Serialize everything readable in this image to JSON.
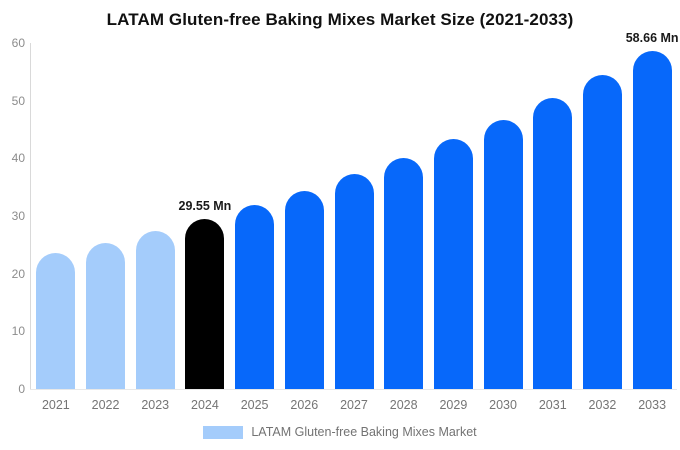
{
  "title": "LATAM Gluten-free Baking Mixes Market Size (2021-2033)",
  "legend": {
    "label": "LATAM Gluten-free Baking Mixes Market",
    "swatch_color": "#a4ccfb"
  },
  "colors": {
    "historical_bar": "#a4ccfb",
    "base_year_bar": "#000000",
    "forecast_bar": "#0768fa",
    "axis_line": "#d9d9d9",
    "baseline": "#e8e8e8",
    "y_tick_text": "#8c8c8c",
    "x_tick_text": "#757575",
    "value_label_text": "#1a1a1a"
  },
  "chart_data": {
    "type": "bar",
    "title": "LATAM Gluten-free Baking Mixes Market Size (2021-2033)",
    "categories": [
      "2021",
      "2022",
      "2023",
      "2024",
      "2025",
      "2026",
      "2027",
      "2028",
      "2029",
      "2030",
      "2031",
      "2032",
      "2033"
    ],
    "values": [
      23.5,
      25.4,
      27.4,
      29.55,
      31.9,
      34.4,
      37.2,
      40.1,
      43.3,
      46.7,
      50.4,
      54.4,
      58.66
    ],
    "unit": "Mn",
    "point_colors": [
      "#a4ccfb",
      "#a4ccfb",
      "#a4ccfb",
      "#000000",
      "#0768fa",
      "#0768fa",
      "#0768fa",
      "#0768fa",
      "#0768fa",
      "#0768fa",
      "#0768fa",
      "#0768fa",
      "#0768fa"
    ],
    "data_labels": {
      "2024": "29.55 Mn",
      "2033": "58.66 Mn"
    },
    "xlabel": "",
    "ylabel": "",
    "ylim": [
      0,
      60
    ],
    "yticks": [
      0,
      10,
      20,
      30,
      40,
      50,
      60
    ],
    "grid": false,
    "legend_position": "bottom",
    "legend_entries": [
      "LATAM Gluten-free Baking Mixes Market"
    ]
  }
}
